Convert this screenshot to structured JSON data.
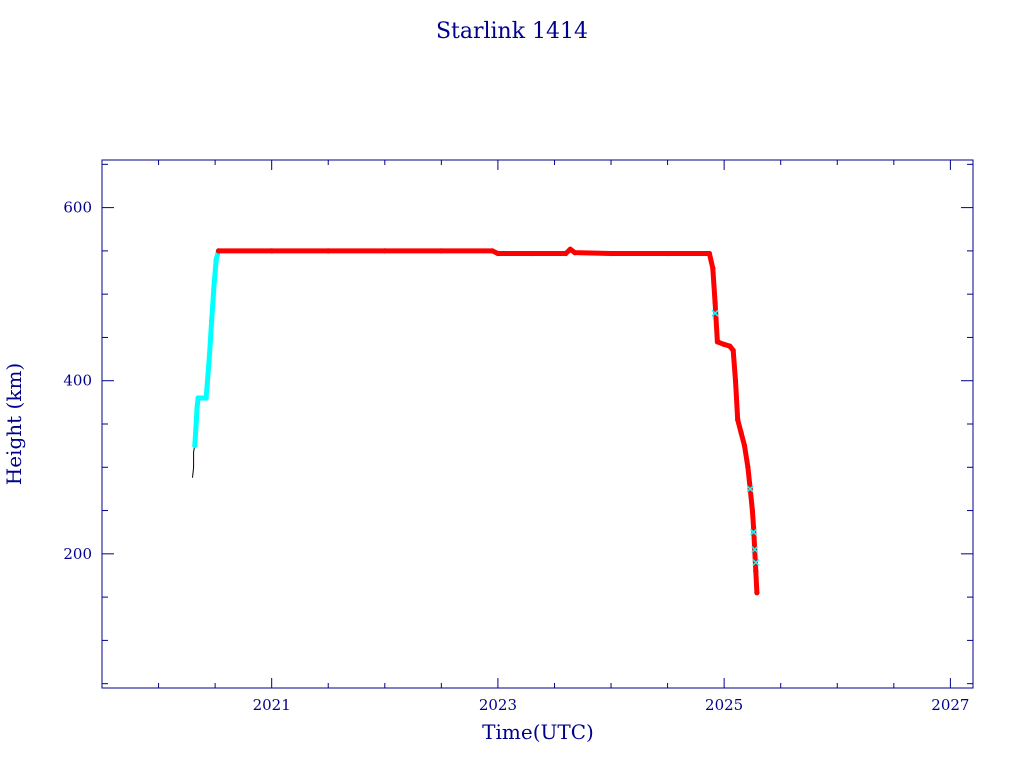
{
  "chart_data": {
    "type": "scatter",
    "title": "Starlink 1414",
    "xlabel": "Time(UTC)",
    "ylabel": "Height (km)",
    "xlim": [
      2019.5,
      2027.2
    ],
    "ylim": [
      45,
      655
    ],
    "x_ticks": [
      2021,
      2023,
      2025,
      2027
    ],
    "y_ticks": [
      200,
      400,
      600
    ],
    "grid": false,
    "colors": {
      "axis": "#00008b",
      "orbit": "#ff0000",
      "raising": "#00ffff",
      "initial": "#000000"
    },
    "series": [
      {
        "style": "line",
        "color": "initial",
        "points": [
          [
            2020.3,
            288
          ],
          [
            2020.31,
            300
          ],
          [
            2020.31,
            318
          ],
          [
            2020.32,
            325
          ]
        ]
      },
      {
        "style": "band",
        "color": "raising",
        "points": [
          [
            2020.32,
            325
          ],
          [
            2020.33,
            345
          ],
          [
            2020.34,
            368
          ],
          [
            2020.35,
            380
          ],
          [
            2020.37,
            380
          ],
          [
            2020.4,
            380
          ],
          [
            2020.42,
            380
          ],
          [
            2020.43,
            395
          ],
          [
            2020.45,
            430
          ],
          [
            2020.47,
            470
          ],
          [
            2020.49,
            510
          ],
          [
            2020.51,
            540
          ],
          [
            2020.53,
            550
          ]
        ]
      },
      {
        "style": "band",
        "color": "orbit",
        "points": [
          [
            2020.53,
            550
          ],
          [
            2021.0,
            550
          ],
          [
            2021.5,
            550
          ],
          [
            2022.0,
            550
          ],
          [
            2022.5,
            550
          ],
          [
            2022.95,
            550
          ],
          [
            2023.0,
            547
          ],
          [
            2023.3,
            547
          ],
          [
            2023.6,
            547
          ],
          [
            2023.64,
            552
          ],
          [
            2023.68,
            548
          ],
          [
            2024.0,
            547
          ],
          [
            2024.5,
            547
          ],
          [
            2024.87,
            547
          ],
          [
            2024.9,
            530
          ],
          [
            2024.92,
            490
          ],
          [
            2024.94,
            445
          ],
          [
            2025.0,
            442
          ],
          [
            2025.05,
            440
          ],
          [
            2025.08,
            435
          ],
          [
            2025.1,
            400
          ],
          [
            2025.12,
            355
          ],
          [
            2025.15,
            340
          ],
          [
            2025.18,
            325
          ],
          [
            2025.21,
            300
          ],
          [
            2025.23,
            275
          ],
          [
            2025.25,
            250
          ],
          [
            2025.26,
            230
          ],
          [
            2025.27,
            205
          ],
          [
            2025.28,
            180
          ],
          [
            2025.29,
            155
          ]
        ]
      },
      {
        "style": "markers",
        "color": "raising",
        "points": [
          [
            2024.92,
            478
          ],
          [
            2025.23,
            275
          ],
          [
            2025.26,
            225
          ],
          [
            2025.27,
            205
          ],
          [
            2025.28,
            190
          ]
        ]
      }
    ]
  }
}
